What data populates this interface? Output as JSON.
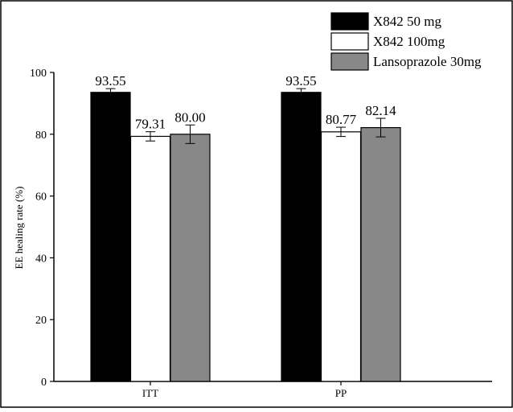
{
  "chart_data": {
    "type": "bar",
    "title": "",
    "xlabel": "",
    "ylabel": "EE healing rate (%)",
    "ylim": [
      0,
      100
    ],
    "yticks": [
      "0",
      "20",
      "40",
      "60",
      "80",
      "100"
    ],
    "categories": [
      "ITT",
      "PP"
    ],
    "series": [
      {
        "name": "X842 50 mg",
        "color": "#000000",
        "values": [
          93.55,
          93.55
        ],
        "labels": [
          "93.55",
          "93.55"
        ],
        "errors": [
          1.2,
          1.2
        ]
      },
      {
        "name": "X842 100mg",
        "color": "#ffffff",
        "values": [
          79.31,
          80.77
        ],
        "labels": [
          "79.31",
          "80.77"
        ],
        "errors": [
          1.5,
          1.5
        ]
      },
      {
        "name": "Lansoprazole 30mg",
        "color": "#888888",
        "values": [
          80.0,
          82.14
        ],
        "labels": [
          "80.00",
          "82.14"
        ],
        "errors": [
          3.0,
          3.0
        ]
      }
    ],
    "legend_position": "top-right",
    "grid": false
  }
}
